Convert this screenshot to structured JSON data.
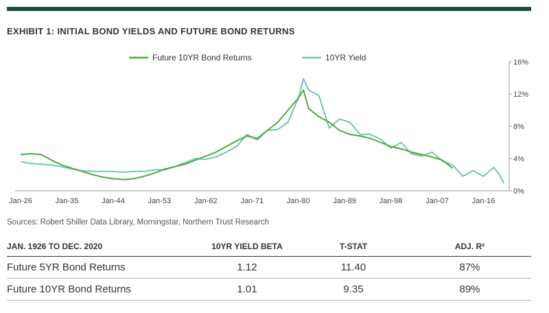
{
  "header": {
    "title": "EXHIBIT 1: INITIAL BOND YIELDS AND FUTURE BOND RETURNS",
    "source": "Sources: Robert Shiller Data Library, Morningstar, Northern Trust Research"
  },
  "colors": {
    "returns": "#4aaa3c",
    "yield": "#6fc6b4",
    "bar": "#1f4e3a"
  },
  "chart_data": {
    "type": "line",
    "title": "",
    "xlabel": "",
    "ylabel": "",
    "ylim": [
      0,
      16
    ],
    "y_ticks": [
      "0%",
      "4%",
      "8%",
      "12%",
      "16%"
    ],
    "x_ticks": [
      "Jan-26",
      "Jan-35",
      "Jan-44",
      "Jan-53",
      "Jan-62",
      "Jan-71",
      "Jan-80",
      "Jan-89",
      "Jan-98",
      "Jan-07",
      "Jan-16"
    ],
    "legend_position": "top-center",
    "series": [
      {
        "name": "Future 10YR Bond Returns",
        "x": [
          1926,
          1928,
          1930,
          1932,
          1934,
          1936,
          1938,
          1940,
          1942,
          1944,
          1946,
          1948,
          1950,
          1952,
          1954,
          1956,
          1958,
          1960,
          1962,
          1964,
          1966,
          1968,
          1970,
          1972,
          1974,
          1976,
          1978,
          1980,
          1981,
          1982,
          1984,
          1986,
          1988,
          1990,
          1992,
          1994,
          1996,
          1998,
          2000,
          2002,
          2004,
          2006,
          2008,
          2010
        ],
        "values": [
          4.5,
          4.6,
          4.5,
          3.8,
          3.2,
          2.8,
          2.4,
          2.0,
          1.7,
          1.5,
          1.4,
          1.5,
          1.8,
          2.2,
          2.7,
          3.0,
          3.3,
          3.8,
          4.3,
          4.8,
          5.5,
          6.2,
          6.8,
          6.5,
          7.5,
          8.5,
          10.0,
          11.5,
          12.5,
          10.2,
          9.2,
          8.5,
          7.5,
          7.0,
          6.8,
          6.5,
          6.0,
          5.5,
          5.2,
          4.8,
          4.5,
          4.2,
          3.8,
          2.8
        ]
      },
      {
        "name": "10YR Yield",
        "x": [
          1926,
          1928,
          1930,
          1932,
          1934,
          1936,
          1938,
          1940,
          1942,
          1944,
          1946,
          1948,
          1950,
          1952,
          1954,
          1956,
          1958,
          1960,
          1962,
          1964,
          1966,
          1968,
          1970,
          1972,
          1974,
          1976,
          1978,
          1980,
          1981,
          1982,
          1984,
          1986,
          1988,
          1990,
          1992,
          1994,
          1996,
          1998,
          2000,
          2002,
          2004,
          2006,
          2008,
          2010,
          2012,
          2014,
          2016,
          2018,
          2019,
          2020
        ],
        "values": [
          3.6,
          3.4,
          3.3,
          3.2,
          3.0,
          2.7,
          2.5,
          2.4,
          2.4,
          2.4,
          2.3,
          2.4,
          2.4,
          2.6,
          2.6,
          3.0,
          3.5,
          4.0,
          3.9,
          4.2,
          4.8,
          5.5,
          7.0,
          6.3,
          7.5,
          7.6,
          8.5,
          11.5,
          13.9,
          12.5,
          11.8,
          7.8,
          8.9,
          8.5,
          7.0,
          7.0,
          6.4,
          5.3,
          6.0,
          4.6,
          4.3,
          4.8,
          3.7,
          3.2,
          1.8,
          2.5,
          1.8,
          2.9,
          2.1,
          0.9
        ]
      }
    ]
  },
  "table": {
    "headers": [
      "JAN. 1926 TO DEC. 2020",
      "10YR YIELD BETA",
      "T-STAT",
      "ADJ. R²"
    ],
    "rows": [
      [
        "Future 5YR Bond Returns",
        "1.12",
        "11.40",
        "87%"
      ],
      [
        "Future 10YR Bond Returns",
        "1.01",
        "9.35",
        "89%"
      ]
    ]
  }
}
